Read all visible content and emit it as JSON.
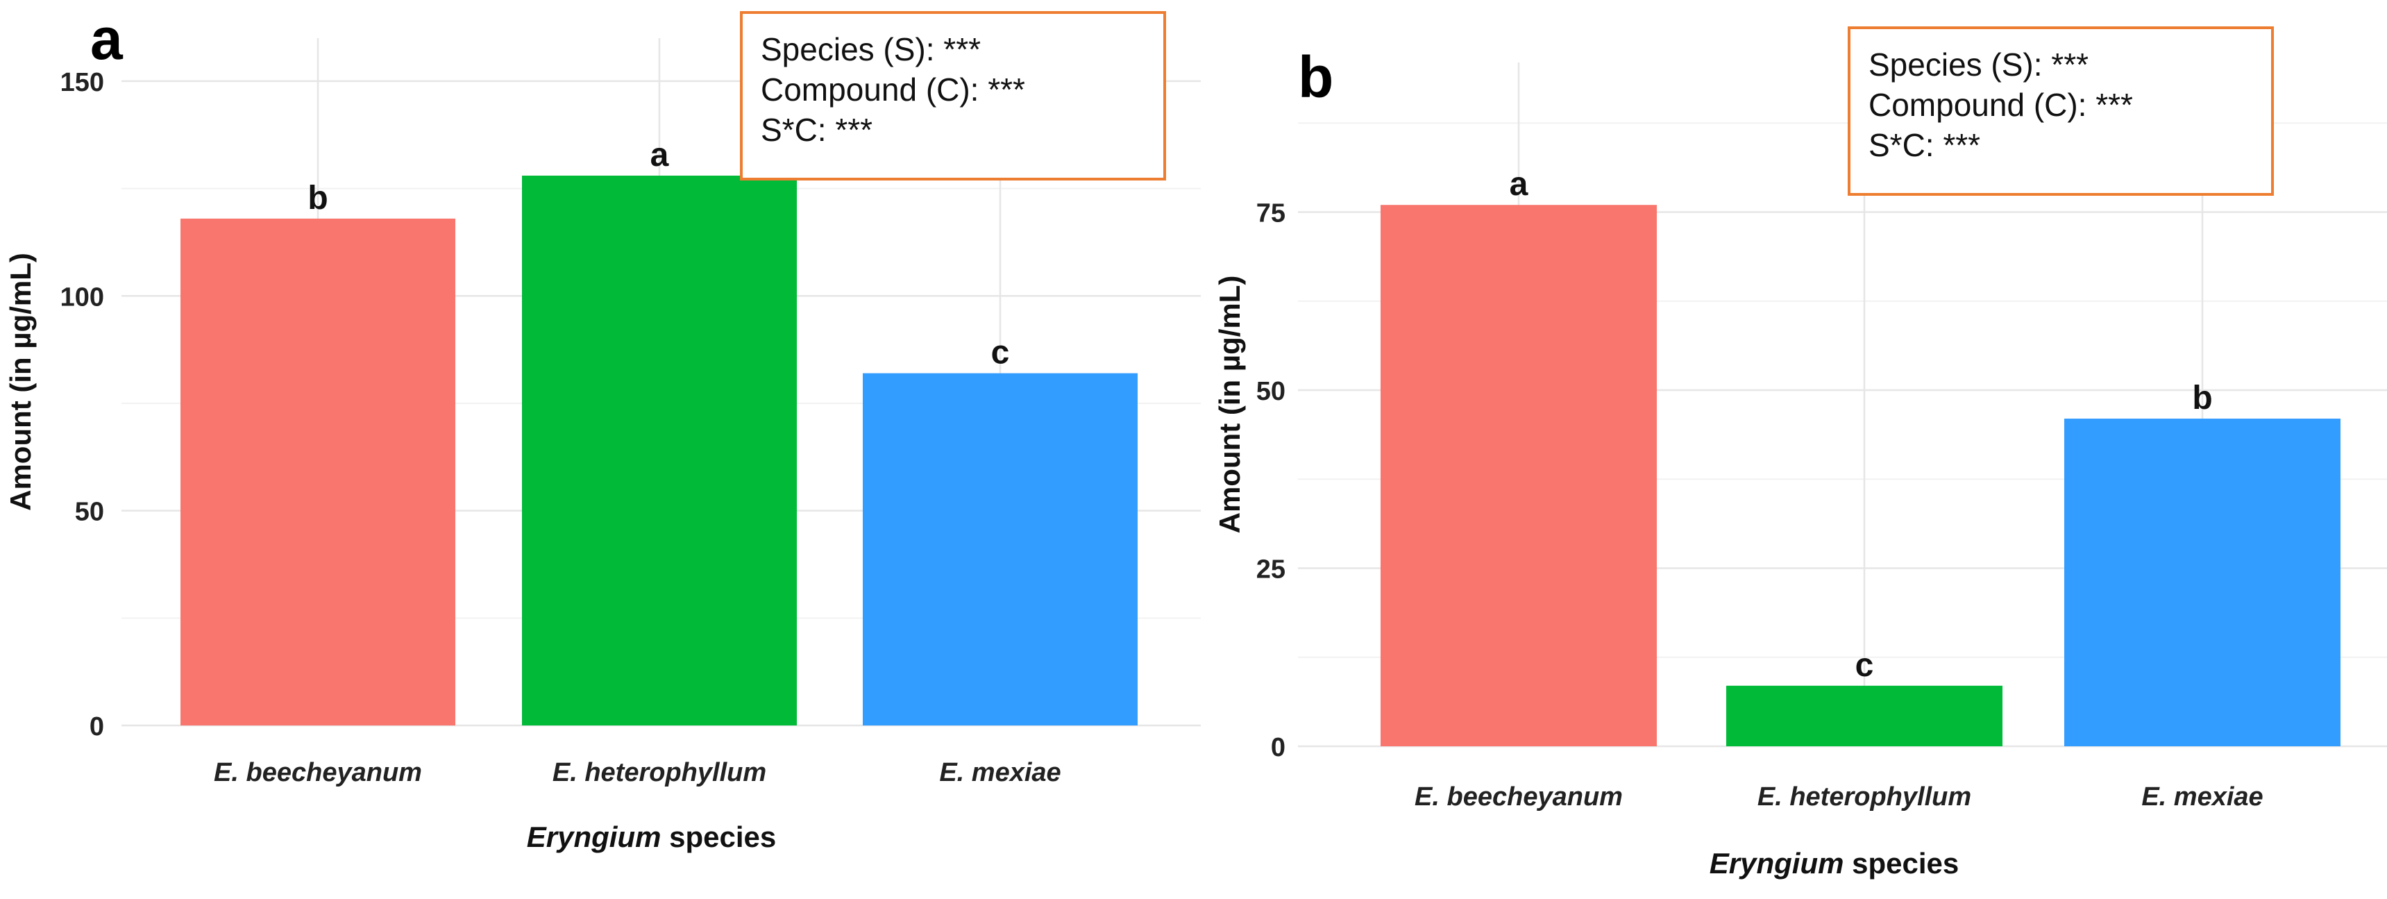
{
  "chart_data": [
    {
      "panel_label": "a",
      "type": "bar",
      "categories": [
        "E. beecheyanum",
        "E. heterophyllum",
        "E. mexiae"
      ],
      "values": [
        118,
        128,
        82
      ],
      "letters": [
        "b",
        "a",
        "c"
      ],
      "colors": [
        "#F8766D",
        "#00BA38",
        "#339CFF"
      ],
      "ylim": [
        0,
        160
      ],
      "yticks": [
        0,
        50,
        100,
        150
      ],
      "ylabel": "Amount (in µg/mL)",
      "xlabel_italic": "Eryngium",
      "xlabel_rest": " species",
      "stats": [
        "Species (S): ***",
        "Compound (C): ***",
        "S*C: ***"
      ]
    },
    {
      "panel_label": "b",
      "type": "bar",
      "categories": [
        "E. beecheyanum",
        "E. heterophyllum",
        "E. mexiae"
      ],
      "values": [
        76,
        8.5,
        46
      ],
      "letters": [
        "a",
        "c",
        "b"
      ],
      "colors": [
        "#F8766D",
        "#00BA38",
        "#339CFF"
      ],
      "ylim": [
        0,
        96
      ],
      "yticks": [
        0,
        25,
        50,
        75
      ],
      "ylabel": "Amount (in µg/mL)",
      "xlabel_italic": "Eryngium",
      "xlabel_rest": " species",
      "stats": [
        "Species (S): ***",
        "Compound (C): ***",
        "S*C: ***"
      ]
    }
  ]
}
